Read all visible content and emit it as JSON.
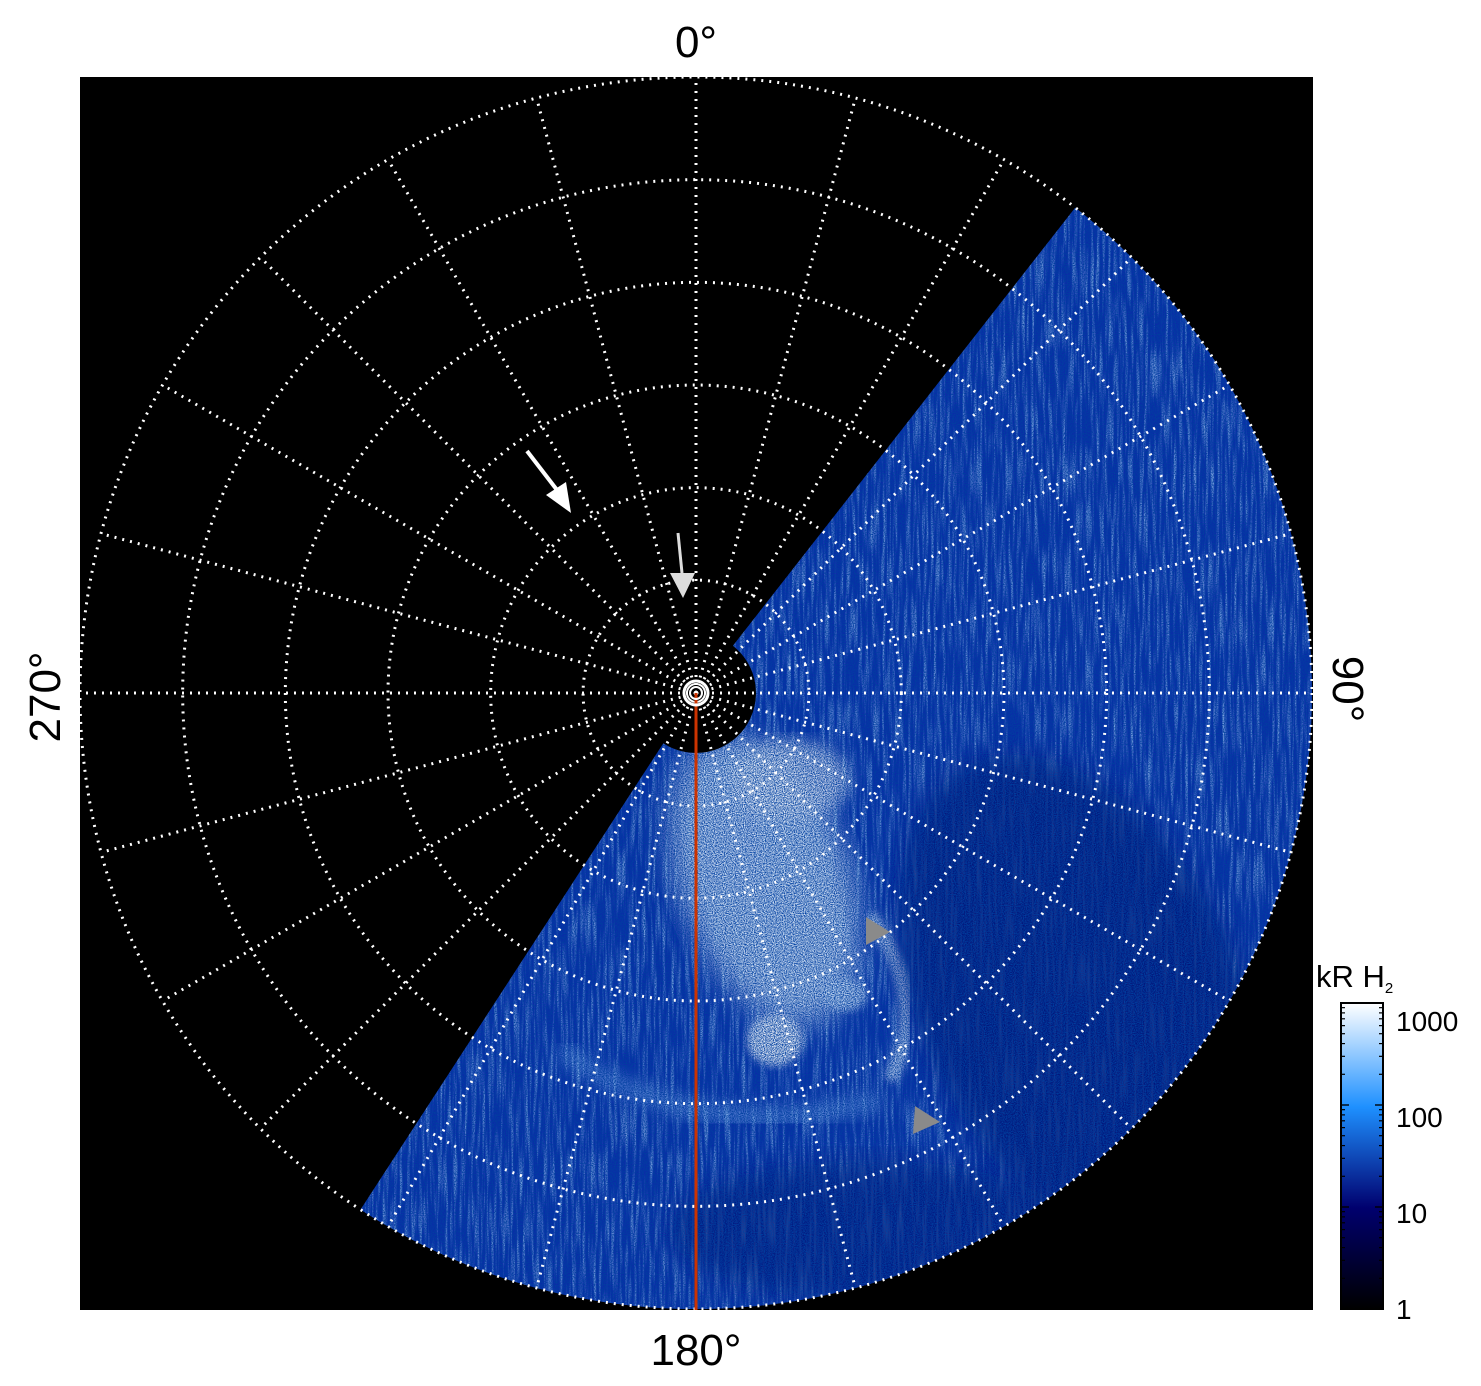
{
  "figure": {
    "direction_labels": {
      "top": "0°",
      "bottom": "180°",
      "left": "270°",
      "right": "90°"
    },
    "colorbar": {
      "title": "kR H",
      "title_subscript": "2",
      "scale": "log",
      "ticks": [
        "1000",
        "100",
        "10",
        "1"
      ],
      "colors": [
        "#ffffff",
        "#1e90ff",
        "#00006e",
        "#000000"
      ]
    },
    "colors": {
      "background": "#000000",
      "grid": "#ffffff",
      "meridian": "#cc3300",
      "arrow_white": "#ffffff",
      "arrow_light_gray": "#dddddd",
      "arrow_gray": "#8a8a8a",
      "emission_bright": "#eaf6ff",
      "emission_mid": "#1e7fff",
      "emission_dark": "#04106a"
    },
    "grid_rings": 6,
    "grid_meridians": 24
  }
}
